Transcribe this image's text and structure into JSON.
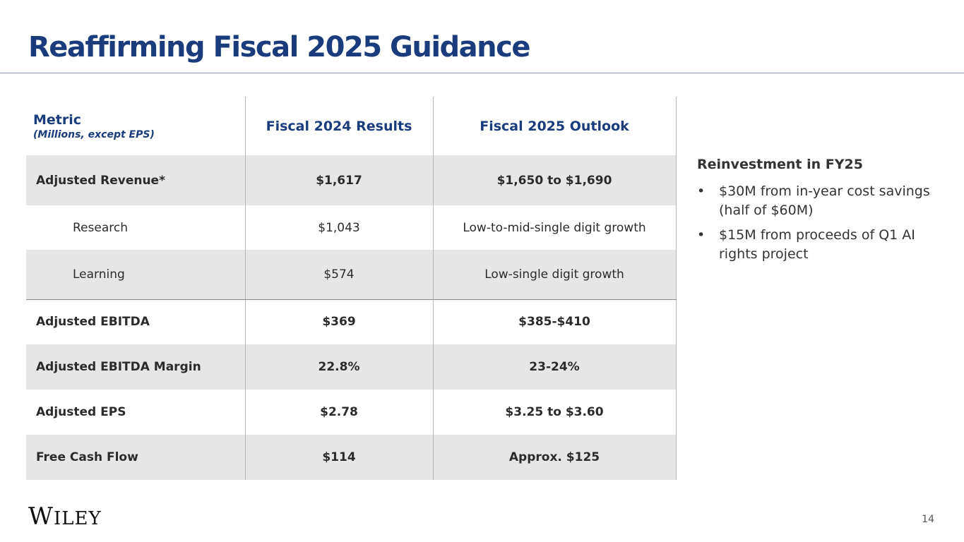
{
  "slide": {
    "title": "Reaffirming Fiscal 2025 Guidance",
    "page_number": "14"
  },
  "table": {
    "headers": {
      "metric": "Metric",
      "metric_note": "(Millions, except EPS)",
      "fy2024": "Fiscal 2024 Results",
      "fy2025": "Fiscal 2025 Outlook"
    },
    "rows": [
      {
        "metric": "Adjusted Revenue*",
        "fy2024": "$1,617",
        "fy2025": "$1,650 to $1,690"
      },
      {
        "metric": "Research",
        "fy2024": "$1,043",
        "fy2025": "Low-to-mid-single digit growth"
      },
      {
        "metric": "Learning",
        "fy2024": "$574",
        "fy2025": "Low-single digit growth"
      },
      {
        "metric": "Adjusted EBITDA",
        "fy2024": "$369",
        "fy2025": "$385-$410"
      },
      {
        "metric": "Adjusted EBITDA Margin",
        "fy2024": "22.8%",
        "fy2025": "23-24%"
      },
      {
        "metric": "Adjusted EPS",
        "fy2024": "$2.78",
        "fy2025": "$3.25 to $3.60"
      },
      {
        "metric": "Free Cash Flow",
        "fy2024": "$114",
        "fy2025": "Approx. $125"
      }
    ]
  },
  "reinvestment": {
    "heading": "Reinvestment in FY25",
    "bullet_char": "•",
    "items": [
      "$30M from in-year cost savings (half of $60M)",
      "$15M from proceeds of Q1 AI rights project"
    ]
  },
  "logo": {
    "first": "W",
    "rest": "ILEY"
  },
  "colors": {
    "title": "#1a3c7c",
    "row_shade": "#e6e6e6",
    "rule": "#8a96a6"
  }
}
